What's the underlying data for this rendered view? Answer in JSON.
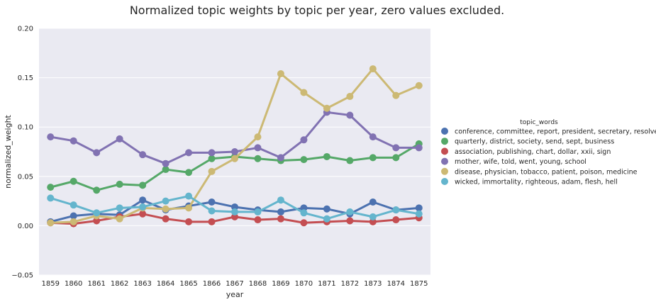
{
  "chart_data": {
    "type": "line",
    "title": "Normalized topic weights by topic per year, zero values excluded.",
    "xlabel": "year",
    "ylabel": "normalized_weight",
    "ylim": [
      -0.05,
      0.2
    ],
    "yticks": [
      "−0.05",
      "0.00",
      "0.05",
      "0.10",
      "0.15",
      "0.20"
    ],
    "ytick_values": [
      -0.05,
      0.0,
      0.05,
      0.1,
      0.15,
      0.2
    ],
    "categories": [
      "1859",
      "1860",
      "1861",
      "1862",
      "1863",
      "1864",
      "1865",
      "1866",
      "1867",
      "1868",
      "1869",
      "1870",
      "1871",
      "1872",
      "1873",
      "1874",
      "1875"
    ],
    "legend_title": "topic_words",
    "legend_position": "right",
    "series": [
      {
        "name": "conference, committee, report, president, secretary, resolved",
        "color": "#4c72b0",
        "values": [
          0.004,
          0.01,
          0.012,
          0.011,
          0.026,
          0.016,
          0.02,
          0.024,
          0.019,
          0.016,
          0.014,
          0.018,
          0.017,
          0.012,
          0.024,
          0.016,
          0.018
        ]
      },
      {
        "name": "quarterly, district, society, send, sept, business",
        "color": "#55a868",
        "values": [
          0.039,
          0.045,
          0.036,
          0.042,
          0.041,
          0.057,
          0.054,
          0.068,
          0.07,
          0.068,
          0.066,
          0.067,
          0.07,
          0.066,
          0.069,
          0.069,
          0.083
        ]
      },
      {
        "name": "association, publishing, chart, dollar, xxii, sign",
        "color": "#c44e52",
        "values": [
          0.003,
          0.002,
          0.005,
          0.009,
          0.012,
          0.007,
          0.004,
          0.004,
          0.009,
          0.006,
          0.007,
          0.003,
          0.004,
          0.005,
          0.004,
          0.006,
          0.008
        ]
      },
      {
        "name": "mother, wife, told, went, young, school",
        "color": "#8172b2",
        "values": [
          0.09,
          0.086,
          0.074,
          0.088,
          0.072,
          0.063,
          0.074,
          0.074,
          0.075,
          0.079,
          0.069,
          0.087,
          0.115,
          0.112,
          0.09,
          0.079,
          0.079
        ]
      },
      {
        "name": "disease, physician, tobacco, patient, poison, medicine",
        "color": "#ccb974",
        "values": [
          0.003,
          0.004,
          0.01,
          0.007,
          0.018,
          0.017,
          0.018,
          0.055,
          0.068,
          0.09,
          0.154,
          0.135,
          0.119,
          0.131,
          0.159,
          0.132,
          0.142
        ]
      },
      {
        "name": "wicked, immortality, righteous, adam, flesh, hell",
        "color": "#64b5cd",
        "values": [
          0.028,
          0.021,
          0.013,
          0.018,
          0.019,
          0.025,
          0.03,
          0.015,
          0.014,
          0.014,
          0.026,
          0.013,
          0.007,
          0.014,
          0.009,
          0.016,
          0.012
        ]
      }
    ]
  }
}
